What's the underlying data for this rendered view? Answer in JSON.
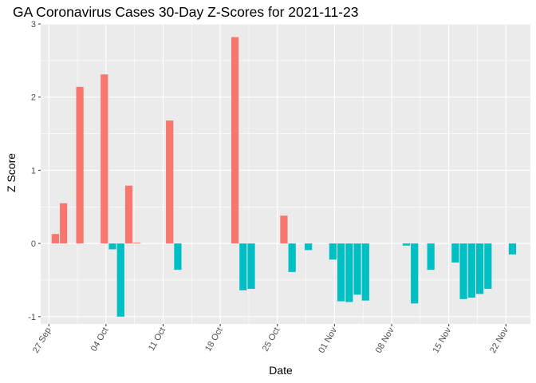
{
  "chart_data": {
    "type": "bar",
    "title": "GA Coronavirus Cases 30-Day Z-Scores for 2021-11-23",
    "xlabel": "Date",
    "ylabel": "Z Score",
    "ylim": [
      -1.1,
      3.0
    ],
    "y_ticks": [
      -1,
      0,
      1,
      2,
      3
    ],
    "x_ticks": [
      {
        "label": "27 Sep",
        "day": 0
      },
      {
        "label": "04 Oct",
        "day": 7
      },
      {
        "label": "11 Oct",
        "day": 14
      },
      {
        "label": "18 Oct",
        "day": 21
      },
      {
        "label": "25 Oct",
        "day": 28
      },
      {
        "label": "01 Nov",
        "day": 35
      },
      {
        "label": "08 Nov",
        "day": 42
      },
      {
        "label": "15 Nov",
        "day": 49
      },
      {
        "label": "22 Nov",
        "day": 56
      }
    ],
    "x_range_days": [
      -1,
      59
    ],
    "grid": true,
    "legend": "none",
    "colors": {
      "positive": "#F8766D",
      "negative": "#00BFC4",
      "panel": "#EBEBEB",
      "grid": "#FFFFFF"
    },
    "series": [
      {
        "name": "Z Score",
        "days": [
          0.8,
          1.8,
          3.8,
          6.8,
          7.8,
          8.8,
          9.8,
          10.8,
          14.8,
          15.8,
          22.8,
          23.8,
          24.8,
          28.8,
          29.8,
          31.8,
          34.8,
          35.8,
          36.8,
          37.8,
          38.8,
          43.8,
          44.8,
          46.8,
          49.8,
          50.8,
          51.8,
          52.8,
          53.8,
          56.8
        ],
        "values": [
          0.13,
          0.55,
          2.14,
          2.31,
          -0.08,
          -1.0,
          0.79,
          0.01,
          1.68,
          -0.36,
          2.82,
          -0.64,
          -0.62,
          0.38,
          -0.39,
          -0.09,
          -0.22,
          -0.79,
          -0.8,
          -0.7,
          -0.78,
          -0.03,
          -0.82,
          -0.36,
          -0.26,
          -0.76,
          -0.74,
          -0.69,
          -0.62,
          -0.15
        ]
      }
    ]
  }
}
